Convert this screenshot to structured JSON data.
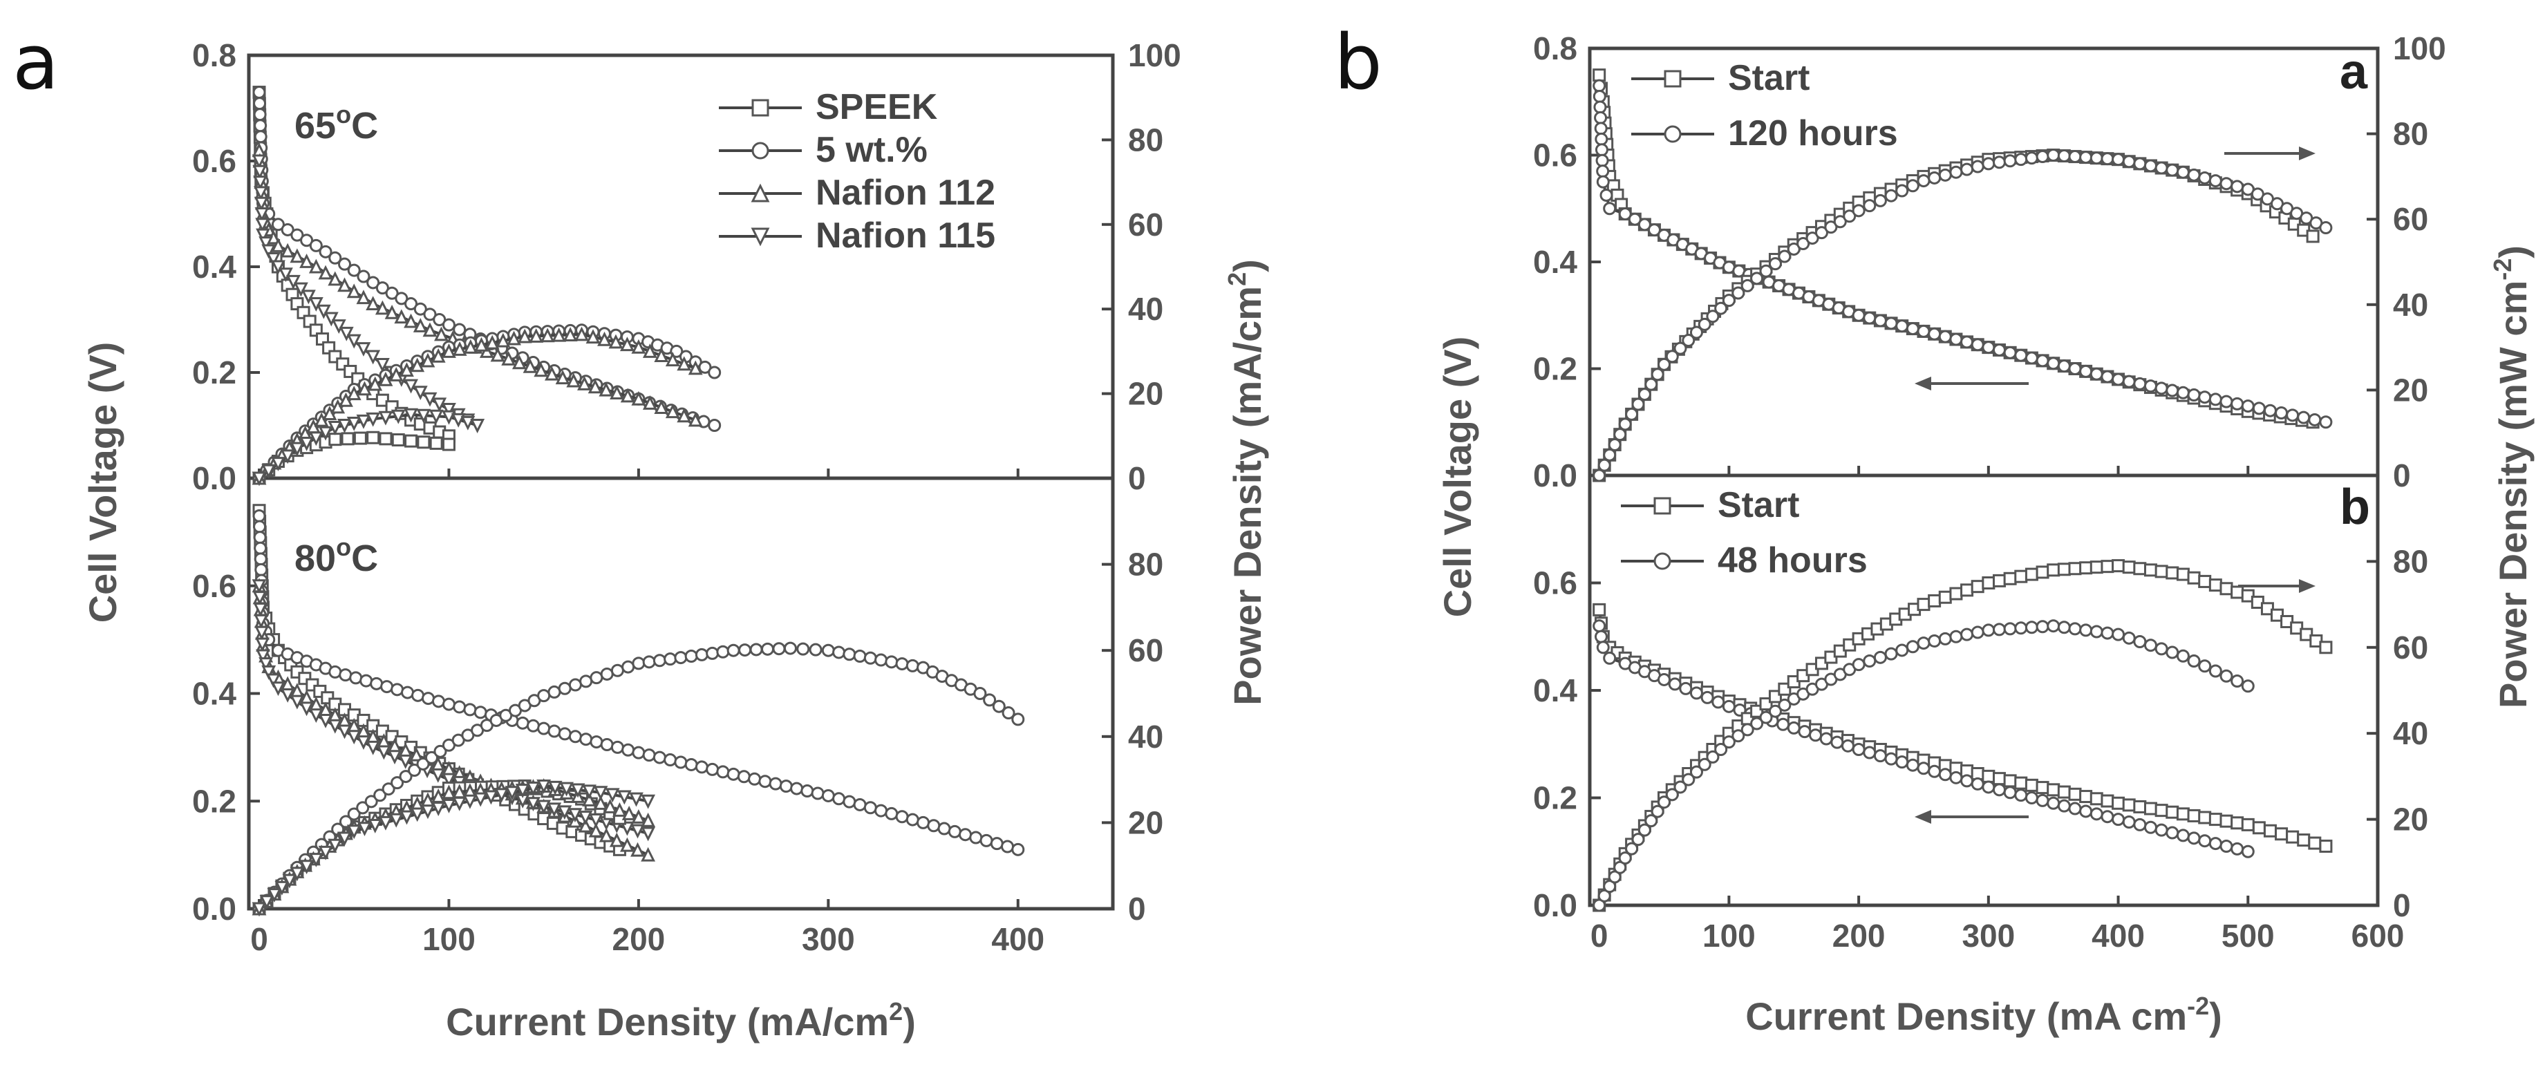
{
  "figure": {
    "panel_labels": [
      "a",
      "b"
    ],
    "panel_a": {
      "xlabel": "Current Density (mA/cm",
      "xlabel_sup": "2",
      "xlabel_tail": ")",
      "ylabel_left": "Cell Voltage (V)",
      "ylabel_right": "Power Density (mA/cm",
      "ylabel_right_sup": "2",
      "ylabel_right_tail": ")",
      "top_condition": "65",
      "bottom_condition": "80",
      "degree_sign": "o",
      "celsius": "C"
    },
    "panel_b": {
      "xlabel": "Current Density (mA cm",
      "xlabel_sup": "-2",
      "xlabel_tail": ")",
      "ylabel_left": "Cell Voltage (V)",
      "ylabel_right": "Power Density (mW cm",
      "ylabel_right_sup": "-2",
      "ylabel_right_tail": ")",
      "top_sublabel": "a",
      "bottom_sublabel": "b"
    }
  },
  "chart_data": [
    {
      "id": "a-65C",
      "type": "line",
      "title": "65°C",
      "xlabel": "Current Density (mA/cm2)",
      "ylabel": "Cell Voltage (V)",
      "y2label": "Power Density (mA/cm2)",
      "xlim": [
        0,
        450
      ],
      "ylim": [
        0,
        0.8
      ],
      "y2lim": [
        0,
        100
      ],
      "xticks": [
        0,
        100,
        200,
        300,
        400
      ],
      "xticklabels": [
        "0",
        "100",
        "200",
        "300",
        "400"
      ],
      "yticks": [
        0,
        0.2,
        0.4,
        0.6,
        0.8
      ],
      "yticklabels": [
        "0.0",
        "0.2",
        "0.4",
        "0.6",
        "0.8"
      ],
      "y2ticks": [
        0,
        20,
        40,
        60,
        80,
        100
      ],
      "y2ticklabels": [
        "0",
        "20",
        "40",
        "60",
        "80",
        "100"
      ],
      "show_xticklabels": false,
      "legend": {
        "position": "top-right",
        "entries": [
          {
            "name": "SPEEK",
            "marker": "square"
          },
          {
            "name": "5 wt.%",
            "marker": "circle"
          },
          {
            "name": "Nafion 112",
            "marker": "triangle-up"
          },
          {
            "name": "Nafion 115",
            "marker": "triangle-down"
          }
        ]
      },
      "series": [
        {
          "name": "SPEEK",
          "marker": "square",
          "axis": "left",
          "x": [
            0,
            1,
            3,
            5,
            10,
            20,
            40,
            60,
            80,
            100
          ],
          "y": [
            0.73,
            0.56,
            0.52,
            0.48,
            0.4,
            0.33,
            0.23,
            0.16,
            0.11,
            0.08
          ]
        },
        {
          "name": "5 wt.%",
          "marker": "circle",
          "axis": "left",
          "x": [
            0,
            2,
            5,
            10,
            30,
            60,
            100,
            150,
            200,
            240
          ],
          "y": [
            0.73,
            0.52,
            0.5,
            0.48,
            0.44,
            0.37,
            0.29,
            0.21,
            0.15,
            0.1
          ]
        },
        {
          "name": "Nafion 112",
          "marker": "triangle-up",
          "axis": "left",
          "x": [
            0,
            2,
            5,
            10,
            30,
            60,
            90,
            120,
            160,
            200,
            230
          ],
          "y": [
            0.62,
            0.5,
            0.47,
            0.44,
            0.4,
            0.33,
            0.28,
            0.24,
            0.19,
            0.15,
            0.11
          ]
        },
        {
          "name": "Nafion 115",
          "marker": "triangle-down",
          "axis": "left",
          "x": [
            0,
            2,
            5,
            10,
            30,
            50,
            70,
            90,
            115
          ],
          "y": [
            0.6,
            0.46,
            0.43,
            0.4,
            0.33,
            0.26,
            0.2,
            0.15,
            0.1
          ]
        },
        {
          "name": "SPEEK",
          "marker": "square",
          "axis": "right",
          "x": [
            0,
            10,
            20,
            40,
            60,
            80,
            100
          ],
          "y": [
            0,
            4,
            6.6,
            9.2,
            9.6,
            8.8,
            8.0
          ]
        },
        {
          "name": "5 wt.%",
          "marker": "circle",
          "axis": "right",
          "x": [
            0,
            20,
            50,
            100,
            140,
            170,
            200,
            220,
            240
          ],
          "y": [
            0,
            9.5,
            21,
            31,
            34.5,
            35,
            33,
            30,
            25
          ]
        },
        {
          "name": "Nafion 112",
          "marker": "triangle-up",
          "axis": "right",
          "x": [
            0,
            20,
            50,
            100,
            140,
            170,
            200,
            230
          ],
          "y": [
            0,
            9,
            20,
            30,
            33.5,
            34,
            31,
            26
          ]
        },
        {
          "name": "Nafion 115",
          "marker": "triangle-down",
          "axis": "right",
          "x": [
            0,
            20,
            40,
            60,
            80,
            100,
            115
          ],
          "y": [
            0,
            7,
            12,
            14,
            15,
            14.5,
            12.5
          ]
        }
      ]
    },
    {
      "id": "a-80C",
      "type": "line",
      "title": "80°C",
      "xlabel": "Current Density (mA/cm2)",
      "ylabel": "Cell Voltage (V)",
      "y2label": "Power Density (mA/cm2)",
      "xlim": [
        0,
        450
      ],
      "ylim": [
        0,
        0.8
      ],
      "y2lim": [
        0,
        100
      ],
      "xticks": [
        0,
        100,
        200,
        300,
        400
      ],
      "xticklabels": [
        "0",
        "100",
        "200",
        "300",
        "400"
      ],
      "yticks": [
        0,
        0.2,
        0.4,
        0.6
      ],
      "yticklabels": [
        "0.0",
        "0.2",
        "0.4",
        "0.6"
      ],
      "y2ticks": [
        0,
        20,
        40,
        60,
        80
      ],
      "y2ticklabels": [
        "0",
        "20",
        "40",
        "60",
        "80"
      ],
      "show_xticklabels": true,
      "series": [
        {
          "name": "SPEEK",
          "marker": "square",
          "axis": "left",
          "x": [
            0,
            2,
            5,
            10,
            20,
            40,
            80,
            120,
            160,
            190
          ],
          "y": [
            0.74,
            0.56,
            0.52,
            0.48,
            0.44,
            0.38,
            0.3,
            0.22,
            0.15,
            0.11
          ]
        },
        {
          "name": "5 wt.%",
          "marker": "circle",
          "axis": "left",
          "x": [
            0,
            2,
            5,
            10,
            40,
            100,
            200,
            300,
            400
          ],
          "y": [
            0.73,
            0.53,
            0.5,
            0.48,
            0.44,
            0.38,
            0.29,
            0.21,
            0.11
          ]
        },
        {
          "name": "Nafion 112",
          "marker": "triangle-up",
          "axis": "left",
          "x": [
            0,
            2,
            5,
            10,
            30,
            60,
            100,
            150,
            205
          ],
          "y": [
            0.6,
            0.49,
            0.45,
            0.43,
            0.38,
            0.32,
            0.26,
            0.19,
            0.1
          ]
        },
        {
          "name": "Nafion 115",
          "marker": "triangle-down",
          "axis": "left",
          "x": [
            0,
            2,
            5,
            10,
            30,
            60,
            100,
            150,
            205
          ],
          "y": [
            0.6,
            0.47,
            0.44,
            0.41,
            0.36,
            0.3,
            0.24,
            0.19,
            0.14
          ]
        },
        {
          "name": "SPEEK",
          "marker": "square",
          "axis": "right",
          "x": [
            0,
            20,
            50,
            100,
            140,
            170,
            190
          ],
          "y": [
            0,
            8.8,
            19,
            28,
            28.5,
            25.5,
            21
          ]
        },
        {
          "name": "5 wt.%",
          "marker": "circle",
          "axis": "right",
          "x": [
            0,
            20,
            50,
            100,
            150,
            200,
            250,
            280,
            300,
            350,
            380,
            400
          ],
          "y": [
            0,
            9.6,
            22,
            38,
            49.5,
            57,
            60,
            60.5,
            60,
            56,
            50,
            44
          ]
        },
        {
          "name": "Nafion 112",
          "marker": "triangle-up",
          "axis": "right",
          "x": [
            0,
            20,
            50,
            100,
            150,
            180,
            205
          ],
          "y": [
            0,
            8.6,
            19,
            27,
            28.5,
            24.5,
            20.5
          ]
        },
        {
          "name": "Nafion 115",
          "marker": "triangle-down",
          "axis": "right",
          "x": [
            0,
            20,
            50,
            100,
            150,
            180,
            205
          ],
          "y": [
            0,
            8.2,
            18,
            24,
            28.5,
            27,
            25
          ]
        }
      ]
    },
    {
      "id": "b-top",
      "type": "line",
      "title": "a",
      "xlabel": "Current Density (mA cm-2)",
      "ylabel": "Cell Voltage (V)",
      "y2label": "Power Density (mW cm-2)",
      "xlim": [
        0,
        600
      ],
      "ylim": [
        0,
        0.8
      ],
      "y2lim": [
        0,
        100
      ],
      "xticks": [
        0,
        100,
        200,
        300,
        400,
        500,
        600
      ],
      "xticklabels": [
        "0",
        "100",
        "200",
        "300",
        "400",
        "500",
        "600"
      ],
      "yticks": [
        0,
        0.2,
        0.4,
        0.6,
        0.8
      ],
      "yticklabels": [
        "0.0",
        "0.2",
        "0.4",
        "0.6",
        "0.8"
      ],
      "y2ticks": [
        0,
        20,
        40,
        60,
        80,
        100
      ],
      "y2ticklabels": [
        "0",
        "20",
        "40",
        "60",
        "80",
        "100"
      ],
      "show_xticklabels": false,
      "legend": {
        "position": "top-left",
        "entries": [
          {
            "name": "Start",
            "marker": "square"
          },
          {
            "name": "120 hours",
            "marker": "circle"
          }
        ]
      },
      "annotations": [
        {
          "type": "arrow",
          "direction": "right",
          "refers_to": "power density axis"
        },
        {
          "type": "arrow",
          "direction": "left",
          "refers_to": "cell voltage axis"
        }
      ],
      "series": [
        {
          "name": "Start",
          "marker": "square",
          "axis": "left",
          "x": [
            0,
            3,
            8,
            20,
            50,
            100,
            200,
            300,
            400,
            500,
            550
          ],
          "y": [
            0.75,
            0.7,
            0.56,
            0.49,
            0.45,
            0.39,
            0.3,
            0.24,
            0.18,
            0.12,
            0.1
          ]
        },
        {
          "name": "120 hours",
          "marker": "circle",
          "axis": "left",
          "x": [
            0,
            3,
            8,
            20,
            50,
            100,
            200,
            300,
            400,
            500,
            560
          ],
          "y": [
            0.73,
            0.55,
            0.5,
            0.49,
            0.45,
            0.39,
            0.3,
            0.24,
            0.18,
            0.13,
            0.1
          ]
        },
        {
          "name": "Start",
          "marker": "square",
          "axis": "right",
          "x": [
            0,
            20,
            50,
            100,
            150,
            200,
            250,
            300,
            350,
            400,
            450,
            500,
            550
          ],
          "y": [
            0,
            12,
            26,
            42,
            54,
            64,
            70,
            74,
            75,
            74,
            71,
            66,
            56
          ]
        },
        {
          "name": "120 hours",
          "marker": "circle",
          "axis": "right",
          "x": [
            0,
            20,
            50,
            100,
            150,
            200,
            250,
            300,
            350,
            400,
            450,
            500,
            560
          ],
          "y": [
            0,
            12,
            26,
            41,
            53,
            62,
            69,
            73,
            75,
            74,
            71,
            67,
            58
          ]
        }
      ]
    },
    {
      "id": "b-bottom",
      "type": "line",
      "title": "b",
      "xlabel": "Current Density (mA cm-2)",
      "ylabel": "Cell Voltage (V)",
      "y2label": "Power Density (mW cm-2)",
      "xlim": [
        0,
        600
      ],
      "ylim": [
        0,
        0.8
      ],
      "y2lim": [
        0,
        100
      ],
      "xticks": [
        0,
        100,
        200,
        300,
        400,
        500,
        600
      ],
      "xticklabels": [
        "0",
        "100",
        "200",
        "300",
        "400",
        "500",
        "600"
      ],
      "yticks": [
        0,
        0.2,
        0.4,
        0.6
      ],
      "yticklabels": [
        "0.0",
        "0.2",
        "0.4",
        "0.6"
      ],
      "y2ticks": [
        0,
        20,
        40,
        60,
        80
      ],
      "y2ticklabels": [
        "0",
        "20",
        "40",
        "60",
        "80"
      ],
      "show_xticklabels": true,
      "legend": {
        "position": "top-left",
        "entries": [
          {
            "name": "Start",
            "marker": "square"
          },
          {
            "name": "48 hours",
            "marker": "circle"
          }
        ]
      },
      "annotations": [
        {
          "type": "arrow",
          "direction": "right",
          "refers_to": "power density axis"
        },
        {
          "type": "arrow",
          "direction": "left",
          "refers_to": "cell voltage axis"
        }
      ],
      "series": [
        {
          "name": "Start",
          "marker": "square",
          "axis": "left",
          "x": [
            0,
            3,
            8,
            20,
            50,
            100,
            200,
            300,
            400,
            500,
            560
          ],
          "y": [
            0.55,
            0.5,
            0.48,
            0.46,
            0.43,
            0.38,
            0.3,
            0.24,
            0.19,
            0.15,
            0.11
          ]
        },
        {
          "name": "48 hours",
          "marker": "circle",
          "axis": "left",
          "x": [
            0,
            3,
            8,
            20,
            50,
            100,
            200,
            300,
            400,
            500
          ],
          "y": [
            0.52,
            0.48,
            0.46,
            0.45,
            0.42,
            0.37,
            0.29,
            0.22,
            0.16,
            0.1
          ]
        },
        {
          "name": "Start",
          "marker": "square",
          "axis": "right",
          "x": [
            0,
            20,
            50,
            100,
            150,
            200,
            250,
            300,
            350,
            400,
            450,
            500,
            560
          ],
          "y": [
            0,
            12,
            25,
            40,
            52,
            62,
            70,
            75,
            78,
            79,
            77,
            72,
            60
          ]
        },
        {
          "name": "48 hours",
          "marker": "circle",
          "axis": "right",
          "x": [
            0,
            20,
            50,
            100,
            150,
            200,
            250,
            300,
            350,
            400,
            450,
            500
          ],
          "y": [
            0,
            11,
            24,
            38,
            48,
            56,
            61,
            64,
            65,
            63,
            58,
            51
          ]
        }
      ]
    }
  ]
}
